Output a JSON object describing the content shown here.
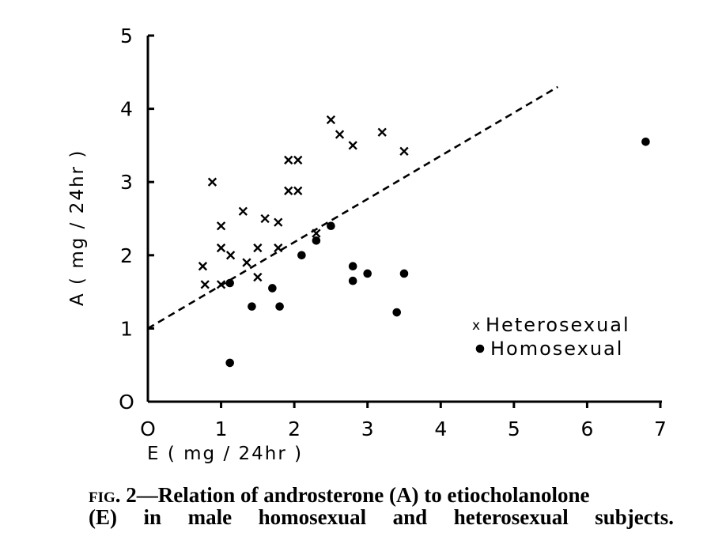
{
  "chart_data": {
    "type": "scatter",
    "xlabel": "E (mg/24hr)",
    "ylabel": "A (mg/24hr)",
    "xlim": [
      0,
      7
    ],
    "ylim": [
      0,
      5
    ],
    "xticks": [
      "O",
      "1",
      "2",
      "3",
      "4",
      "5",
      "6",
      "7"
    ],
    "yticks": [
      "O",
      "1",
      "2",
      "3",
      "4",
      "5"
    ],
    "grid": false,
    "legend_position": "right",
    "series": [
      {
        "name": "Heterosexual",
        "marker": "x",
        "points": [
          [
            0.75,
            1.85
          ],
          [
            0.78,
            1.6
          ],
          [
            0.88,
            3.0
          ],
          [
            1.0,
            2.4
          ],
          [
            1.0,
            2.1
          ],
          [
            1.0,
            1.6
          ],
          [
            1.13,
            2.0
          ],
          [
            1.3,
            2.6
          ],
          [
            1.35,
            1.9
          ],
          [
            1.5,
            2.1
          ],
          [
            1.5,
            1.7
          ],
          [
            1.6,
            2.5
          ],
          [
            1.78,
            2.45
          ],
          [
            1.78,
            2.1
          ],
          [
            1.92,
            3.3
          ],
          [
            1.92,
            2.88
          ],
          [
            2.05,
            3.3
          ],
          [
            2.05,
            2.88
          ],
          [
            2.3,
            2.3
          ],
          [
            2.5,
            3.85
          ],
          [
            2.62,
            3.65
          ],
          [
            2.8,
            3.5
          ],
          [
            3.2,
            3.68
          ],
          [
            3.5,
            3.42
          ]
        ]
      },
      {
        "name": "Homosexual",
        "marker": "dot",
        "points": [
          [
            1.12,
            1.62
          ],
          [
            1.12,
            0.53
          ],
          [
            1.42,
            1.3
          ],
          [
            1.7,
            1.55
          ],
          [
            1.8,
            1.3
          ],
          [
            2.1,
            2.0
          ],
          [
            2.3,
            2.2
          ],
          [
            2.5,
            2.4
          ],
          [
            2.8,
            1.85
          ],
          [
            2.8,
            1.65
          ],
          [
            3.0,
            1.75
          ],
          [
            3.4,
            1.22
          ],
          [
            3.5,
            1.75
          ],
          [
            6.8,
            3.55
          ]
        ]
      }
    ],
    "regression_line": {
      "style": "dashed",
      "from": [
        0,
        1.0
      ],
      "to": [
        5.6,
        4.3
      ]
    }
  },
  "legend": {
    "heterosexual": {
      "symbol": "x",
      "label": "Heterosexual"
    },
    "homosexual": {
      "symbol": "•",
      "label": "Homosexual"
    }
  },
  "axes": {
    "x_label": "E ( mg / 24hr )",
    "y_label": "A ( mg / 24hr )"
  },
  "caption": {
    "fig_number": "fig. 2",
    "line1": "—Relation of androsterone (A) to etiocholanolone",
    "line2": "(E) in male homosexual and heterosexual subjects."
  }
}
